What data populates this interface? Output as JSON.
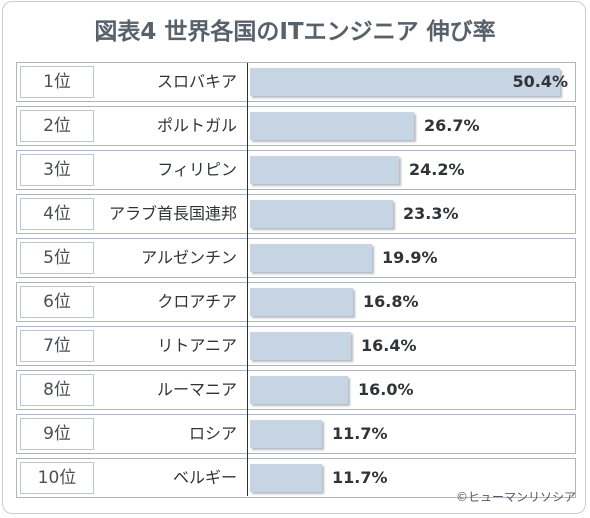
{
  "title": "図表4 世界各国のITエンジニア 伸び率",
  "credit": "©ヒューマンリソシア",
  "chart_data": {
    "type": "bar",
    "orientation": "horizontal",
    "title": "図表4 世界各国のITエンジニア 伸び率",
    "ranks": [
      "1位",
      "2位",
      "3位",
      "4位",
      "5位",
      "6位",
      "7位",
      "8位",
      "9位",
      "10位"
    ],
    "categories": [
      "スロバキア",
      "ポルトガル",
      "フィリピン",
      "アラブ首長国連邦",
      "アルゼンチン",
      "クロアチア",
      "リトアニア",
      "ルーマニア",
      "ロシア",
      "ベルギー"
    ],
    "values": [
      50.4,
      26.7,
      24.2,
      23.3,
      19.9,
      16.8,
      16.4,
      16.0,
      11.7,
      11.7
    ],
    "value_labels": [
      "50.4%",
      "26.7%",
      "24.2%",
      "23.3%",
      "19.9%",
      "16.8%",
      "16.4%",
      "16.0%",
      "11.7%",
      "11.7%"
    ],
    "xlim": [
      0,
      50.4
    ],
    "unit": "%",
    "grid": false,
    "bar_color": "#c6d4e3"
  }
}
